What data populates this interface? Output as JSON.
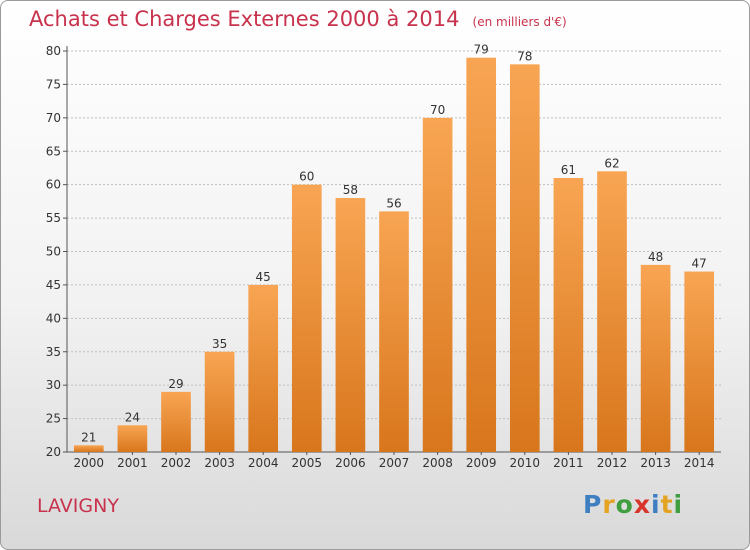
{
  "title": "Achats et Charges Externes 2000 à 2014",
  "subtitle": "(en milliers d'€)",
  "city": "LAVIGNY",
  "logo": {
    "text": "Proxiti",
    "letters": [
      {
        "char": "P",
        "color": "#3f7fc1"
      },
      {
        "char": "r",
        "color": "#e5a323"
      },
      {
        "char": "o",
        "color": "#3f9e3f"
      },
      {
        "char": "x",
        "color": "#d9342c"
      },
      {
        "char": "i",
        "color": "#3f7fc1"
      },
      {
        "char": "t",
        "color": "#e5a323"
      },
      {
        "char": "i",
        "color": "#3f9e3f"
      }
    ]
  },
  "colors": {
    "title": "#c8324d",
    "bar_top": "#f8a553",
    "bar_bottom": "#d8761c",
    "grid": "#bfbfbf",
    "axis": "#555555",
    "text": "#333333"
  },
  "chart_data": {
    "type": "bar",
    "categories": [
      "2000",
      "2001",
      "2002",
      "2003",
      "2004",
      "2005",
      "2006",
      "2007",
      "2008",
      "2009",
      "2010",
      "2011",
      "2012",
      "2013",
      "2014"
    ],
    "values": [
      21,
      24,
      29,
      35,
      45,
      60,
      58,
      56,
      70,
      79,
      78,
      61,
      62,
      48,
      47
    ],
    "ylim": [
      20,
      80
    ],
    "yticks": [
      20,
      25,
      30,
      35,
      40,
      45,
      50,
      55,
      60,
      65,
      70,
      75,
      80
    ],
    "grid": true,
    "data_labels": true
  }
}
